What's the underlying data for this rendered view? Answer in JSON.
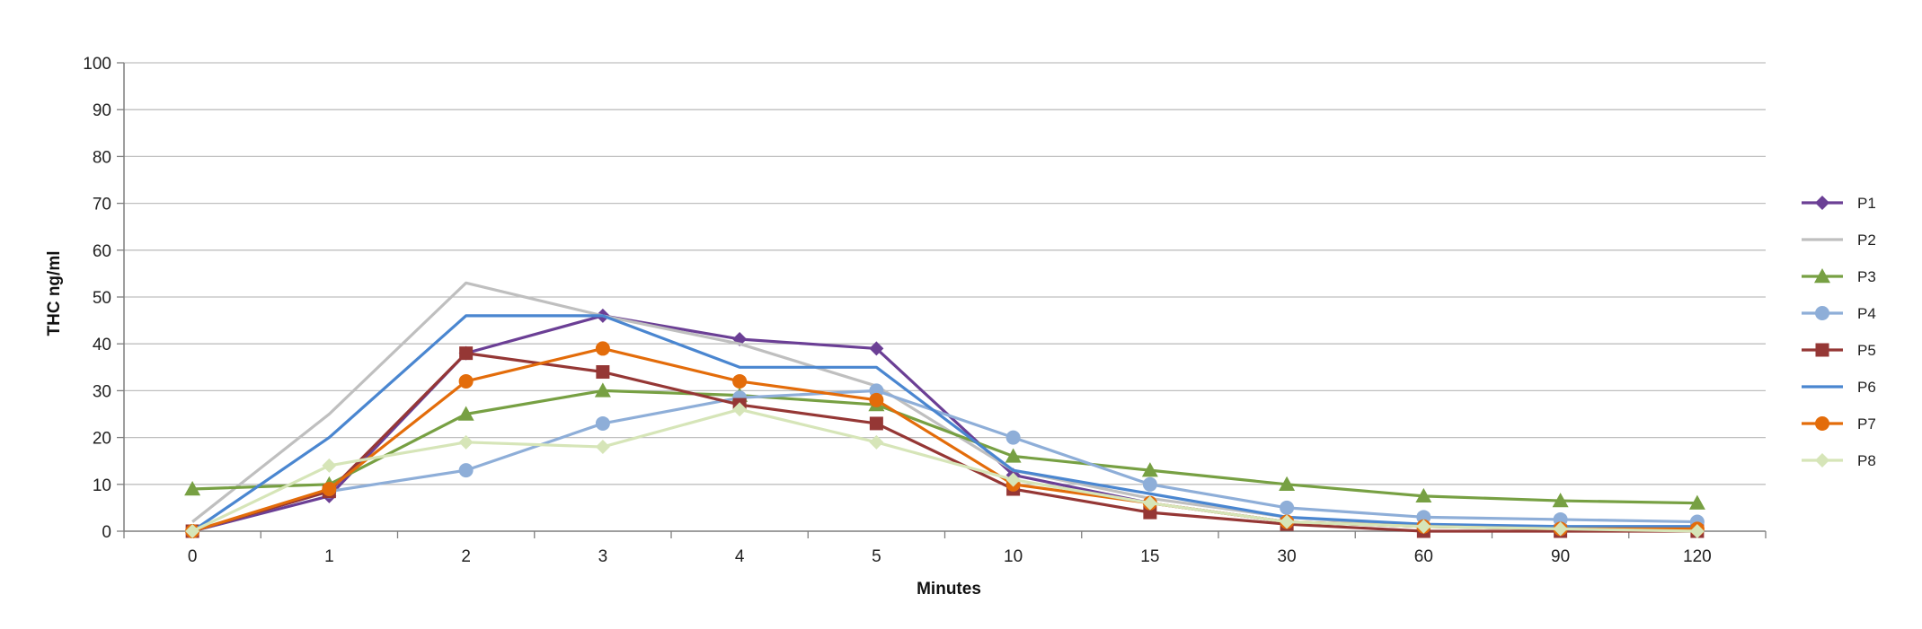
{
  "chart_data": {
    "type": "line",
    "title": "",
    "xlabel": "Minutes",
    "ylabel": "THC ng/ml",
    "categories": [
      "0",
      "1",
      "2",
      "3",
      "4",
      "5",
      "10",
      "15",
      "30",
      "60",
      "90",
      "120"
    ],
    "ylim": [
      0,
      100
    ],
    "yticks": [
      0,
      10,
      20,
      30,
      40,
      50,
      60,
      70,
      80,
      90,
      100
    ],
    "grid": true,
    "legend_position": "right",
    "series": [
      {
        "name": "P1",
        "color": "#6B3F95",
        "marker": "diamond",
        "values": [
          0,
          7.5,
          38,
          46,
          41,
          39,
          12,
          6,
          2,
          1,
          0.5,
          0.5
        ]
      },
      {
        "name": "P2",
        "color": "#BFBFBF",
        "marker": "none",
        "values": [
          2,
          25,
          53,
          46,
          40,
          31,
          13,
          7,
          3,
          1,
          0.5,
          0.5
        ]
      },
      {
        "name": "P3",
        "color": "#77A043",
        "marker": "triangle",
        "values": [
          9,
          10,
          25,
          30,
          29,
          27,
          16,
          13,
          10,
          7.5,
          6.5,
          6
        ]
      },
      {
        "name": "P4",
        "color": "#8EAED8",
        "marker": "circle",
        "values": [
          0,
          8.5,
          13,
          23,
          28.5,
          30,
          20,
          10,
          5,
          3,
          2.5,
          2
        ]
      },
      {
        "name": "P5",
        "color": "#953735",
        "marker": "square",
        "values": [
          0,
          8.5,
          38,
          34,
          27,
          23,
          9,
          4,
          1.5,
          0,
          0,
          0
        ]
      },
      {
        "name": "P6",
        "color": "#4A86D0",
        "marker": "none",
        "values": [
          0,
          20,
          46,
          46,
          35,
          35,
          13,
          8,
          3,
          1.5,
          1,
          1
        ]
      },
      {
        "name": "P7",
        "color": "#E36C0A",
        "marker": "circle",
        "values": [
          0,
          9,
          32,
          39,
          32,
          28,
          10,
          6,
          2,
          1,
          0.5,
          0.5
        ]
      },
      {
        "name": "P8",
        "color": "#D6E5B8",
        "marker": "diamond",
        "values": [
          0,
          14,
          19,
          18,
          26,
          19,
          11,
          6,
          2,
          1,
          0.5,
          0
        ]
      }
    ]
  }
}
